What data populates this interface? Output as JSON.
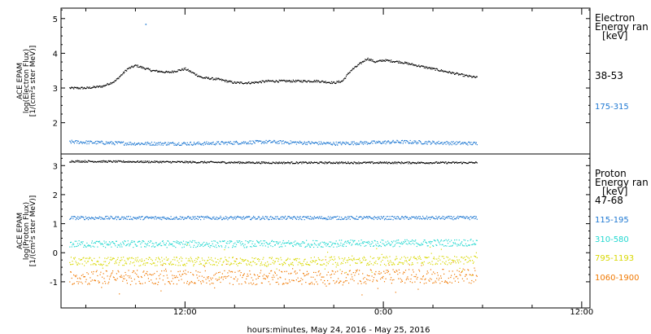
{
  "chart_data": [
    {
      "type": "scatter",
      "panel": "electron",
      "ylabel_lines": [
        "ACE EPAM",
        "log(Electron Flux)",
        "[1/(cm²s ster MeV)]"
      ],
      "ylim": [
        1.1,
        5.3
      ],
      "yticks": [
        2,
        3,
        4,
        5
      ],
      "legend_title_lines": [
        "Electron",
        "Energy ran",
        "[keV]"
      ],
      "series": [
        {
          "name": "38-53",
          "color": "#000000",
          "points": [
            [
              "05:00",
              3.0
            ],
            [
              "06:00",
              3.0
            ],
            [
              "07:00",
              3.05
            ],
            [
              "07:45",
              3.2
            ],
            [
              "08:30",
              3.55
            ],
            [
              "09:00",
              3.65
            ],
            [
              "10:00",
              3.5
            ],
            [
              "11:00",
              3.45
            ],
            [
              "12:00",
              3.55
            ],
            [
              "13:00",
              3.3
            ],
            [
              "14:00",
              3.25
            ],
            [
              "15:00",
              3.15
            ],
            [
              "16:00",
              3.15
            ],
            [
              "17:00",
              3.2
            ],
            [
              "18:00",
              3.2
            ],
            [
              "19:00",
              3.2
            ],
            [
              "20:00",
              3.2
            ],
            [
              "21:00",
              3.15
            ],
            [
              "21:30",
              3.2
            ],
            [
              "22:00",
              3.5
            ],
            [
              "23:00",
              3.85
            ],
            [
              "23:30",
              3.75
            ],
            [
              "24:00",
              3.8
            ],
            [
              "25:00",
              3.75
            ],
            [
              "26:00",
              3.65
            ],
            [
              "27:00",
              3.55
            ],
            [
              "28:00",
              3.45
            ],
            [
              "29:00",
              3.35
            ],
            [
              "29:40",
              3.3
            ]
          ]
        },
        {
          "name": "175-315",
          "color": "#1e78d2",
          "points": [
            [
              "05:00",
              1.45
            ],
            [
              "09:00",
              1.4
            ],
            [
              "13:00",
              1.4
            ],
            [
              "17:00",
              1.45
            ],
            [
              "21:00",
              1.4
            ],
            [
              "25:00",
              1.45
            ],
            [
              "29:40",
              1.4
            ]
          ]
        }
      ]
    },
    {
      "type": "scatter",
      "panel": "proton",
      "ylabel_lines": [
        "ACE EPAM",
        "log(Proton Flux)",
        "[1/(cm²s ster MeV)]"
      ],
      "ylim": [
        -1.9,
        3.4
      ],
      "yticks": [
        -1,
        0,
        1,
        2,
        3
      ],
      "legend_title_lines": [
        "Proton",
        "Energy ran",
        "[keV]"
      ],
      "series": [
        {
          "name": "47-68",
          "color": "#000000",
          "points": [
            [
              "05:00",
              3.15
            ],
            [
              "17:00",
              3.1
            ],
            [
              "29:40",
              3.1
            ]
          ]
        },
        {
          "name": "115-195",
          "color": "#1e78d2",
          "points": [
            [
              "05:00",
              1.2
            ],
            [
              "17:00",
              1.2
            ],
            [
              "29:40",
              1.2
            ]
          ]
        },
        {
          "name": "310-580",
          "color": "#22d8d0",
          "points": [
            [
              "05:00",
              0.3
            ],
            [
              "17:00",
              0.3
            ],
            [
              "29:40",
              0.35
            ]
          ]
        },
        {
          "name": "795-1193",
          "color": "#d8d800",
          "points": [
            [
              "05:00",
              -0.3
            ],
            [
              "17:00",
              -0.3
            ],
            [
              "29:40",
              -0.25
            ]
          ]
        },
        {
          "name": "1060-1900",
          "color": "#f07800",
          "points": [
            [
              "05:00",
              -0.85
            ],
            [
              "17:00",
              -0.85
            ],
            [
              "29:40",
              -0.8
            ]
          ]
        }
      ]
    }
  ],
  "x_axis": {
    "xlim_hours": [
      4.5,
      36.5
    ],
    "ticks": [
      {
        "hour": 12,
        "label": "12:00"
      },
      {
        "hour": 24,
        "label": "0:00"
      },
      {
        "hour": 36,
        "label": "12:00"
      }
    ],
    "xlabel": "hours:minutes, May 24, 2016 - May 25, 2016"
  }
}
